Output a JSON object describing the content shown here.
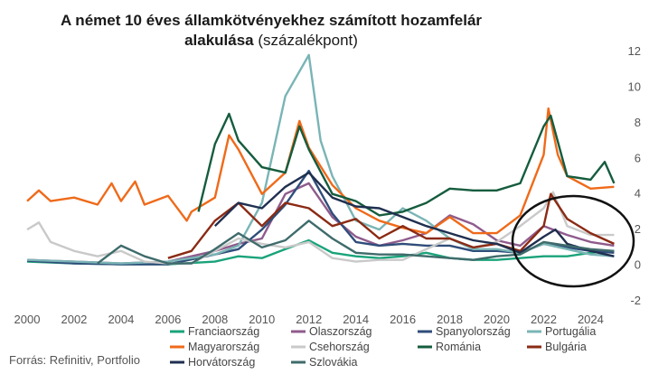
{
  "chart_data": {
    "type": "line",
    "title_bold": "A német 10 éves államkötvényekhez számított hozamfelár",
    "title_bold2": "alakulása",
    "title_unit": "(százalékpont)",
    "source": "Forrás: Refinitiv, Portfolio",
    "x_ticks": [
      "2000",
      "2002",
      "2004",
      "2006",
      "2008",
      "2010",
      "2012",
      "2014",
      "2016",
      "2018",
      "2020",
      "2022",
      "2024"
    ],
    "y_ticks": [
      "12",
      "10",
      "8",
      "6",
      "4",
      "2",
      "0",
      "-2"
    ],
    "xlim": [
      2000,
      2025.1
    ],
    "ylim": [
      -2,
      12
    ],
    "series": [
      {
        "name": "Franciaország",
        "color": "#1aa37a",
        "values": [
          [
            2000,
            0.2
          ],
          [
            2002,
            0.1
          ],
          [
            2004,
            0.05
          ],
          [
            2006,
            0.05
          ],
          [
            2008,
            0.2
          ],
          [
            2009,
            0.5
          ],
          [
            2010,
            0.4
          ],
          [
            2011,
            0.9
          ],
          [
            2012,
            1.4
          ],
          [
            2013,
            0.7
          ],
          [
            2014,
            0.5
          ],
          [
            2015,
            0.4
          ],
          [
            2016,
            0.5
          ],
          [
            2017,
            0.7
          ],
          [
            2018,
            0.4
          ],
          [
            2019,
            0.3
          ],
          [
            2020,
            0.3
          ],
          [
            2021,
            0.4
          ],
          [
            2022,
            0.5
          ],
          [
            2023,
            0.5
          ],
          [
            2024,
            0.7
          ],
          [
            2025,
            0.8
          ]
        ]
      },
      {
        "name": "Olaszország",
        "color": "#8f5b8c",
        "values": [
          [
            2000,
            0.3
          ],
          [
            2002,
            0.2
          ],
          [
            2004,
            0.1
          ],
          [
            2006,
            0.2
          ],
          [
            2008,
            0.8
          ],
          [
            2009,
            1.2
          ],
          [
            2010,
            1.5
          ],
          [
            2011,
            4.0
          ],
          [
            2012,
            4.6
          ],
          [
            2013,
            2.7
          ],
          [
            2014,
            1.6
          ],
          [
            2015,
            1.1
          ],
          [
            2016,
            1.4
          ],
          [
            2017,
            1.8
          ],
          [
            2018,
            2.8
          ],
          [
            2019,
            2.3
          ],
          [
            2020,
            1.4
          ],
          [
            2021,
            1.1
          ],
          [
            2022,
            2.2
          ],
          [
            2023,
            1.7
          ],
          [
            2024,
            1.3
          ],
          [
            2025,
            1.1
          ]
        ]
      },
      {
        "name": "Spanyolország",
        "color": "#2f4d7a",
        "values": [
          [
            2000,
            0.25
          ],
          [
            2002,
            0.1
          ],
          [
            2004,
            0.05
          ],
          [
            2006,
            0.05
          ],
          [
            2008,
            0.6
          ],
          [
            2009,
            0.9
          ],
          [
            2010,
            2.0
          ],
          [
            2011,
            3.4
          ],
          [
            2012,
            5.3
          ],
          [
            2013,
            2.9
          ],
          [
            2014,
            1.3
          ],
          [
            2015,
            1.1
          ],
          [
            2016,
            1.2
          ],
          [
            2017,
            1.1
          ],
          [
            2018,
            1.1
          ],
          [
            2019,
            0.8
          ],
          [
            2020,
            0.8
          ],
          [
            2021,
            0.7
          ],
          [
            2022,
            1.2
          ],
          [
            2023,
            1.0
          ],
          [
            2024,
            0.8
          ],
          [
            2025,
            0.7
          ]
        ]
      },
      {
        "name": "Portugália",
        "color": "#7ab4b5",
        "values": [
          [
            2000,
            0.3
          ],
          [
            2002,
            0.2
          ],
          [
            2004,
            0.1
          ],
          [
            2006,
            0.2
          ],
          [
            2008,
            0.6
          ],
          [
            2009,
            1.1
          ],
          [
            2010,
            3.5
          ],
          [
            2011,
            9.5
          ],
          [
            2012,
            11.8
          ],
          [
            2012.5,
            7.0
          ],
          [
            2013,
            5.0
          ],
          [
            2014,
            2.5
          ],
          [
            2015,
            2.0
          ],
          [
            2016,
            3.2
          ],
          [
            2017,
            2.5
          ],
          [
            2018,
            1.5
          ],
          [
            2019,
            0.9
          ],
          [
            2020,
            0.9
          ],
          [
            2021,
            0.7
          ],
          [
            2022,
            1.2
          ],
          [
            2023,
            0.9
          ],
          [
            2024,
            0.6
          ],
          [
            2025,
            0.5
          ]
        ]
      },
      {
        "name": "Magyarország",
        "color": "#ef6a1a",
        "values": [
          [
            2000,
            3.6
          ],
          [
            2000.5,
            4.2
          ],
          [
            2001,
            3.6
          ],
          [
            2002,
            3.8
          ],
          [
            2003,
            3.4
          ],
          [
            2003.6,
            4.6
          ],
          [
            2004,
            3.6
          ],
          [
            2004.6,
            4.7
          ],
          [
            2005,
            3.4
          ],
          [
            2006,
            3.9
          ],
          [
            2006.8,
            2.5
          ],
          [
            2007,
            3.0
          ],
          [
            2008,
            3.8
          ],
          [
            2008.6,
            7.3
          ],
          [
            2009,
            6.5
          ],
          [
            2010,
            4.0
          ],
          [
            2011,
            5.2
          ],
          [
            2011.6,
            8.1
          ],
          [
            2012,
            6.6
          ],
          [
            2013,
            4.5
          ],
          [
            2014,
            3.2
          ],
          [
            2015,
            2.5
          ],
          [
            2016,
            2.1
          ],
          [
            2017,
            1.8
          ],
          [
            2018,
            2.7
          ],
          [
            2019,
            1.8
          ],
          [
            2020,
            1.8
          ],
          [
            2021,
            2.8
          ],
          [
            2022,
            6.2
          ],
          [
            2022.2,
            8.8
          ],
          [
            2022.6,
            6.2
          ],
          [
            2023,
            5.0
          ],
          [
            2024,
            4.3
          ],
          [
            2025,
            4.4
          ]
        ]
      },
      {
        "name": "Csehország",
        "color": "#c9c9c9",
        "values": [
          [
            2000,
            2.0
          ],
          [
            2000.5,
            2.4
          ],
          [
            2001,
            1.3
          ],
          [
            2002,
            0.8
          ],
          [
            2003,
            0.5
          ],
          [
            2004,
            0.8
          ],
          [
            2005,
            0.2
          ],
          [
            2006,
            0.1
          ],
          [
            2007,
            0.1
          ],
          [
            2008,
            0.8
          ],
          [
            2009,
            1.5
          ],
          [
            2010,
            1.2
          ],
          [
            2011,
            1.0
          ],
          [
            2012,
            1.3
          ],
          [
            2013,
            0.4
          ],
          [
            2014,
            0.2
          ],
          [
            2015,
            0.3
          ],
          [
            2016,
            0.3
          ],
          [
            2017,
            0.9
          ],
          [
            2018,
            1.5
          ],
          [
            2019,
            1.0
          ],
          [
            2020,
            1.3
          ],
          [
            2021,
            2.2
          ],
          [
            2022,
            3.2
          ],
          [
            2022.4,
            4.1
          ],
          [
            2023,
            2.2
          ],
          [
            2024,
            1.7
          ],
          [
            2025,
            1.7
          ]
        ]
      },
      {
        "name": "Románia",
        "color": "#155c3e",
        "values": [
          [
            2007.3,
            3.0
          ],
          [
            2008,
            6.8
          ],
          [
            2008.6,
            8.5
          ],
          [
            2009,
            7.0
          ],
          [
            2010,
            5.5
          ],
          [
            2011,
            5.2
          ],
          [
            2011.6,
            7.8
          ],
          [
            2012,
            6.5
          ],
          [
            2013,
            4.0
          ],
          [
            2014,
            3.6
          ],
          [
            2015,
            2.8
          ],
          [
            2016,
            3.0
          ],
          [
            2017,
            3.5
          ],
          [
            2018,
            4.3
          ],
          [
            2019,
            4.2
          ],
          [
            2020,
            4.2
          ],
          [
            2021,
            4.6
          ],
          [
            2022,
            7.8
          ],
          [
            2022.3,
            8.4
          ],
          [
            2023,
            5.0
          ],
          [
            2024,
            4.8
          ],
          [
            2024.6,
            5.8
          ],
          [
            2025,
            4.6
          ]
        ]
      },
      {
        "name": "Bulgária",
        "color": "#8b2a14",
        "values": [
          [
            2006,
            0.4
          ],
          [
            2007,
            0.8
          ],
          [
            2008,
            2.5
          ],
          [
            2009,
            3.5
          ],
          [
            2010,
            2.2
          ],
          [
            2011,
            3.5
          ],
          [
            2012,
            3.2
          ],
          [
            2013,
            2.2
          ],
          [
            2014,
            2.6
          ],
          [
            2015,
            1.5
          ],
          [
            2016,
            2.2
          ],
          [
            2017,
            1.5
          ],
          [
            2018,
            1.5
          ],
          [
            2019,
            1.0
          ],
          [
            2020,
            1.2
          ],
          [
            2021,
            0.8
          ],
          [
            2022,
            2.2
          ],
          [
            2022.3,
            4.0
          ],
          [
            2023,
            2.6
          ],
          [
            2024,
            1.8
          ],
          [
            2025,
            1.2
          ]
        ]
      },
      {
        "name": "Horvátország",
        "color": "#1f2f4f",
        "values": [
          [
            2008,
            2.2
          ],
          [
            2009,
            3.5
          ],
          [
            2010,
            3.2
          ],
          [
            2011,
            4.4
          ],
          [
            2012,
            5.2
          ],
          [
            2013,
            3.8
          ],
          [
            2014,
            3.3
          ],
          [
            2015,
            3.2
          ],
          [
            2016,
            2.7
          ],
          [
            2017,
            2.2
          ],
          [
            2018,
            1.8
          ],
          [
            2019,
            1.4
          ],
          [
            2020,
            1.2
          ],
          [
            2021,
            0.7
          ],
          [
            2022,
            1.6
          ],
          [
            2022.5,
            2.0
          ],
          [
            2023,
            1.2
          ],
          [
            2024,
            0.8
          ],
          [
            2025,
            0.5
          ]
        ]
      },
      {
        "name": "Szlovákia",
        "color": "#3f6b6b",
        "values": [
          [
            2003,
            0.1
          ],
          [
            2004,
            1.1
          ],
          [
            2005,
            0.5
          ],
          [
            2006,
            0.1
          ],
          [
            2007,
            0.1
          ],
          [
            2008,
            0.9
          ],
          [
            2009,
            1.8
          ],
          [
            2010,
            1.0
          ],
          [
            2011,
            1.4
          ],
          [
            2012,
            2.5
          ],
          [
            2013,
            1.5
          ],
          [
            2014,
            0.7
          ],
          [
            2015,
            0.6
          ],
          [
            2016,
            0.6
          ],
          [
            2017,
            0.5
          ],
          [
            2018,
            0.4
          ],
          [
            2019,
            0.3
          ],
          [
            2020,
            0.5
          ],
          [
            2021,
            0.6
          ],
          [
            2022,
            1.3
          ],
          [
            2023,
            1.1
          ],
          [
            2024,
            0.9
          ],
          [
            2025,
            0.8
          ]
        ]
      }
    ],
    "annotation": "ellipse highlighting 2021–2025",
    "grid": false
  }
}
